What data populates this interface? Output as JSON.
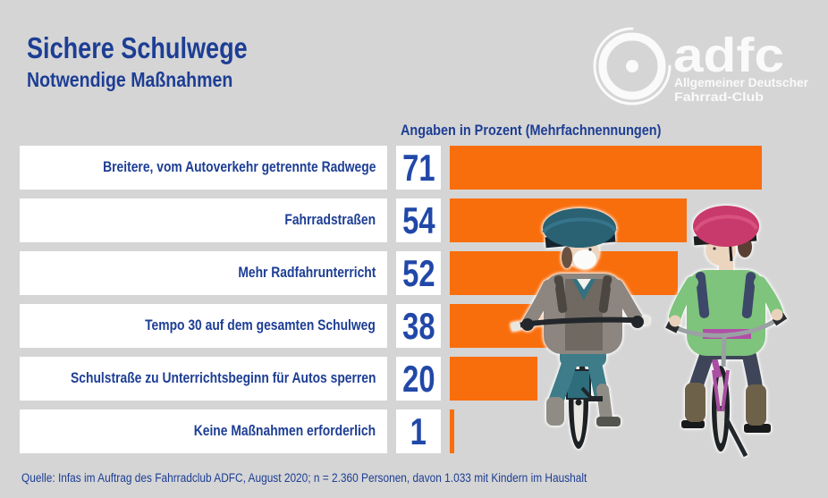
{
  "header": {
    "title": "Sichere Schulwege",
    "subtitle": "Notwendige Maßnahmen"
  },
  "logo": {
    "wordmark": "adfc",
    "tagline_line1": "Allgemeiner Deutscher",
    "tagline_line2": "Fahrrad-Club"
  },
  "chart_data": {
    "type": "bar",
    "orientation": "horizontal",
    "title": "Angaben in Prozent (Mehrfachnennungen)",
    "unit": "percent",
    "categories": [
      "Breitere, vom Autoverkehr getrennte Radwege",
      "Fahrradstraßen",
      "Mehr Radfahrunterricht",
      "Tempo 30 auf dem gesamten Schulweg",
      "Schulstraße zu Unterrichtsbeginn für Autos sperren",
      "Keine Maßnahmen erforderlich"
    ],
    "values": [
      71,
      54,
      52,
      38,
      20,
      1
    ],
    "xlim": [
      0,
      100
    ],
    "grid": false,
    "legend": "none",
    "value_labels_position": "left-of-bar"
  },
  "illustration": {
    "alt": "Zwei Kinder mit Helmen auf Fahrrädern"
  },
  "source": "Quelle: Infas im Auftrag des Fahrradclub ADFC, August 2020; n = 2.360 Personen, davon 1.033 mit Kindern im Haushalt",
  "colors": {
    "bg": "#d5d5d5",
    "orange": "#f96e0c",
    "blue": "#1d3e94",
    "numblue": "#2148a8",
    "box": "#ffffff"
  }
}
